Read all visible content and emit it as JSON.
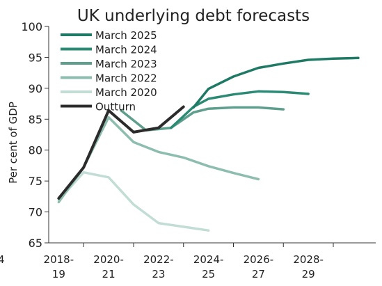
{
  "chart_data": {
    "type": "line",
    "title": "UK underlying debt forecasts",
    "ylabel": "Per cent of GDP",
    "xlabel": "",
    "ylim": [
      65,
      100
    ],
    "yticks": [
      65,
      70,
      75,
      80,
      85,
      90,
      95,
      100
    ],
    "xlim": [
      2017.6,
      2030.7
    ],
    "xticks": [
      {
        "x": 2018,
        "line1": "2018-",
        "line2": "19"
      },
      {
        "x": 2020,
        "line1": "2020-",
        "line2": "21"
      },
      {
        "x": 2022,
        "line1": "2022-",
        "line2": "23"
      },
      {
        "x": 2024,
        "line1": "2024-",
        "line2": "25"
      },
      {
        "x": 2026,
        "line1": "2026-",
        "line2": "27"
      },
      {
        "x": 2028,
        "line1": "2028-",
        "line2": "29"
      }
    ],
    "left_edge_label": "4",
    "grid": false,
    "legend_position": "top-left",
    "series": [
      {
        "name": "March 2025",
        "color": "#1e7a64",
        "x": [
          2023.4,
          2024,
          2025,
          2026,
          2027,
          2028,
          2029,
          2030
        ],
        "y": [
          86.9,
          89.9,
          91.9,
          93.3,
          94.0,
          94.6,
          94.8,
          94.9
        ]
      },
      {
        "name": "March 2024",
        "color": "#2a8a74",
        "x": [
          2022.5,
          2023.4,
          2024,
          2025,
          2026,
          2027,
          2028
        ],
        "y": [
          83.6,
          87.0,
          88.3,
          89.0,
          89.5,
          89.4,
          89.1
        ]
      },
      {
        "name": "March 2023",
        "color": "#5e9e8c",
        "x": [
          2020.5,
          2021.5,
          2022.5,
          2023.4,
          2024,
          2025,
          2026,
          2027
        ],
        "y": [
          86.4,
          83.2,
          83.6,
          86.1,
          86.7,
          86.9,
          86.9,
          86.6
        ]
      },
      {
        "name": "March 2022",
        "color": "#8dbdaf",
        "x": [
          2018,
          2019,
          2020,
          2021,
          2022,
          2023,
          2024,
          2025,
          2026
        ],
        "y": [
          71.6,
          77.2,
          85.3,
          81.3,
          79.7,
          78.8,
          77.4,
          76.3,
          75.3
        ]
      },
      {
        "name": "March 2020",
        "color": "#c2ddd5",
        "x": [
          2018,
          2019,
          2020,
          2021,
          2022,
          2023,
          2024
        ],
        "y": [
          71.9,
          76.4,
          75.6,
          71.2,
          68.2,
          67.6,
          67.0
        ]
      },
      {
        "name": "Outturn",
        "color": "#2b2b2b",
        "x": [
          2018,
          2019,
          2020,
          2021,
          2022,
          2023
        ],
        "y": [
          72.2,
          77.2,
          86.4,
          82.9,
          83.6,
          87.0
        ]
      }
    ]
  }
}
